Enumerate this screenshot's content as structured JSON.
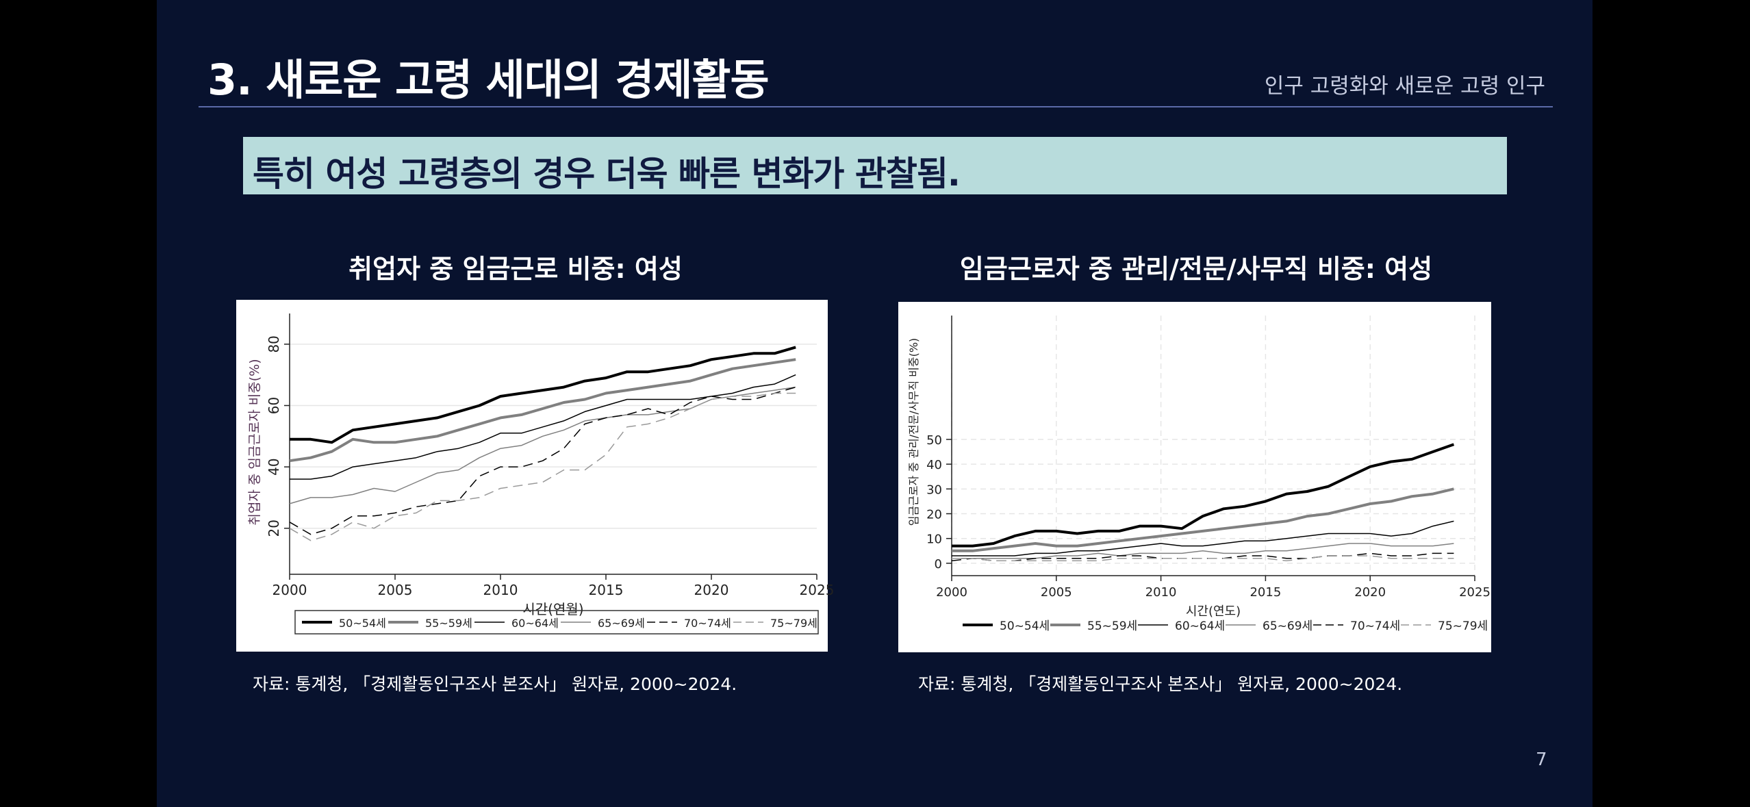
{
  "slide": {
    "title": "3. 새로운 고령 세대의 경제활동",
    "subtitle": "인구 고령화와 새로운 고령 인구",
    "banner": "특히 여성 고령층의 경우 더욱 빠른 변화가 관찰됨.",
    "page_number": "7"
  },
  "charts": [
    {
      "title": "취업자 중 임금근로 비중: 여성",
      "source": "자료: 통계청, 「경제활동인구조사 본조사」 원자료, 2000~2024."
    },
    {
      "title": "임금근로자 중 관리/전문/사무직 비중: 여성",
      "source": "자료: 통계청, 「경제활동인구조사 본조사」 원자료, 2000~2024."
    }
  ],
  "chart_data": [
    {
      "type": "line",
      "title": "취업자 중 임금근로 비중: 여성",
      "xlabel": "시간(연월)",
      "ylabel": "취업자 중 임금근로자 비중(%)",
      "xlim": [
        2000,
        2025
      ],
      "ylim": [
        5,
        90
      ],
      "xticks": [
        "2000",
        "2005",
        "2010",
        "2015",
        "2020",
        "2025"
      ],
      "xtick_values": [
        2000,
        2005,
        2010,
        2015,
        2020,
        2025
      ],
      "yticks": [
        "20",
        "40",
        "60",
        "80"
      ],
      "ytick_values": [
        20,
        40,
        60,
        80
      ],
      "grid": true,
      "legend_position": "bottom",
      "legend_boxed": true,
      "x": [
        2000,
        2001,
        2002,
        2003,
        2004,
        2005,
        2006,
        2007,
        2008,
        2009,
        2010,
        2011,
        2012,
        2013,
        2014,
        2015,
        2016,
        2017,
        2018,
        2019,
        2020,
        2021,
        2022,
        2023,
        2024
      ],
      "series": [
        {
          "name": "50~54세",
          "color": "#000000",
          "width": 4,
          "dash": "",
          "values": [
            49,
            49,
            48,
            52,
            53,
            54,
            55,
            56,
            58,
            60,
            63,
            64,
            65,
            66,
            68,
            69,
            71,
            71,
            72,
            73,
            75,
            76,
            77,
            77,
            79
          ]
        },
        {
          "name": "55~59세",
          "color": "#808080",
          "width": 4,
          "dash": "",
          "values": [
            42,
            43,
            45,
            49,
            48,
            48,
            49,
            50,
            52,
            54,
            56,
            57,
            59,
            61,
            62,
            64,
            65,
            66,
            67,
            68,
            70,
            72,
            73,
            74,
            75
          ]
        },
        {
          "name": "60~64세",
          "color": "#000000",
          "width": 1.5,
          "dash": "",
          "values": [
            36,
            36,
            37,
            40,
            41,
            42,
            43,
            45,
            46,
            48,
            51,
            51,
            53,
            55,
            58,
            60,
            62,
            62,
            62,
            62,
            63,
            64,
            66,
            67,
            70
          ]
        },
        {
          "name": "65~69세",
          "color": "#808080",
          "width": 1.5,
          "dash": "",
          "values": [
            28,
            30,
            30,
            31,
            33,
            32,
            35,
            38,
            39,
            43,
            46,
            47,
            50,
            52,
            55,
            56,
            57,
            57,
            58,
            59,
            62,
            63,
            64,
            65,
            66
          ]
        },
        {
          "name": "70~74세",
          "color": "#000000",
          "width": 1.5,
          "dash": "14,8",
          "values": [
            22,
            18,
            20,
            24,
            24,
            25,
            27,
            28,
            29,
            37,
            40,
            40,
            42,
            46,
            54,
            56,
            57,
            59,
            57,
            61,
            63,
            62,
            62,
            64,
            66
          ]
        },
        {
          "name": "75~79세",
          "color": "#999999",
          "width": 1.5,
          "dash": "14,8",
          "values": [
            20,
            16,
            18,
            22,
            20,
            24,
            25,
            29,
            29,
            30,
            33,
            34,
            35,
            39,
            39,
            44,
            53,
            54,
            56,
            59,
            62,
            63,
            63,
            64,
            64
          ]
        }
      ]
    },
    {
      "type": "line",
      "title": "임금근로자 중 관리/전문/사무직 비중: 여성",
      "xlabel": "시간(연도)",
      "ylabel": "임금근로자 중 관리/전문/사무직 비중(%)",
      "xlim": [
        2000,
        2025
      ],
      "ylim": [
        -5,
        100
      ],
      "xticks": [
        "2000",
        "2005",
        "2010",
        "2015",
        "2020",
        "2025"
      ],
      "xtick_values": [
        2000,
        2005,
        2010,
        2015,
        2020,
        2025
      ],
      "yticks": [
        "0",
        "10",
        "20",
        "30",
        "40",
        "50"
      ],
      "ytick_values": [
        0,
        10,
        20,
        30,
        40,
        50
      ],
      "grid": true,
      "legend_position": "bottom",
      "legend_boxed": false,
      "x": [
        2000,
        2001,
        2002,
        2003,
        2004,
        2005,
        2006,
        2007,
        2008,
        2009,
        2010,
        2011,
        2012,
        2013,
        2014,
        2015,
        2016,
        2017,
        2018,
        2019,
        2020,
        2021,
        2022,
        2023,
        2024
      ],
      "series": [
        {
          "name": "50~54세",
          "color": "#000000",
          "width": 4,
          "dash": "",
          "values": [
            7,
            7,
            8,
            11,
            13,
            13,
            12,
            13,
            13,
            15,
            15,
            14,
            19,
            22,
            23,
            25,
            28,
            29,
            31,
            35,
            39,
            41,
            42,
            45,
            48
          ]
        },
        {
          "name": "55~59세",
          "color": "#808080",
          "width": 4,
          "dash": "",
          "values": [
            5,
            5,
            6,
            7,
            8,
            7,
            7,
            8,
            9,
            10,
            11,
            12,
            13,
            14,
            15,
            16,
            17,
            19,
            20,
            22,
            24,
            25,
            27,
            28,
            30
          ]
        },
        {
          "name": "60~64세",
          "color": "#000000",
          "width": 1.5,
          "dash": "",
          "values": [
            3,
            3,
            3,
            3,
            4,
            4,
            5,
            5,
            6,
            7,
            8,
            7,
            7,
            8,
            9,
            9,
            10,
            11,
            12,
            12,
            12,
            11,
            12,
            15,
            17
          ]
        },
        {
          "name": "65~69세",
          "color": "#808080",
          "width": 1.5,
          "dash": "",
          "values": [
            2,
            2,
            2,
            2,
            2,
            3,
            3,
            4,
            3,
            4,
            4,
            4,
            5,
            4,
            4,
            5,
            5,
            6,
            7,
            8,
            8,
            7,
            7,
            7,
            8
          ]
        },
        {
          "name": "70~74세",
          "color": "#000000",
          "width": 1.5,
          "dash": "14,8",
          "values": [
            1,
            2,
            1,
            1,
            2,
            2,
            2,
            2,
            3,
            3,
            2,
            2,
            2,
            2,
            3,
            3,
            2,
            2,
            3,
            3,
            4,
            3,
            3,
            4,
            4
          ]
        },
        {
          "name": "75~79세",
          "color": "#999999",
          "width": 1.5,
          "dash": "14,8",
          "values": [
            2,
            2,
            1,
            1,
            1,
            1,
            1,
            1,
            2,
            2,
            2,
            2,
            2,
            2,
            2,
            2,
            1,
            2,
            3,
            3,
            3,
            2,
            2,
            2,
            2
          ]
        }
      ]
    }
  ]
}
